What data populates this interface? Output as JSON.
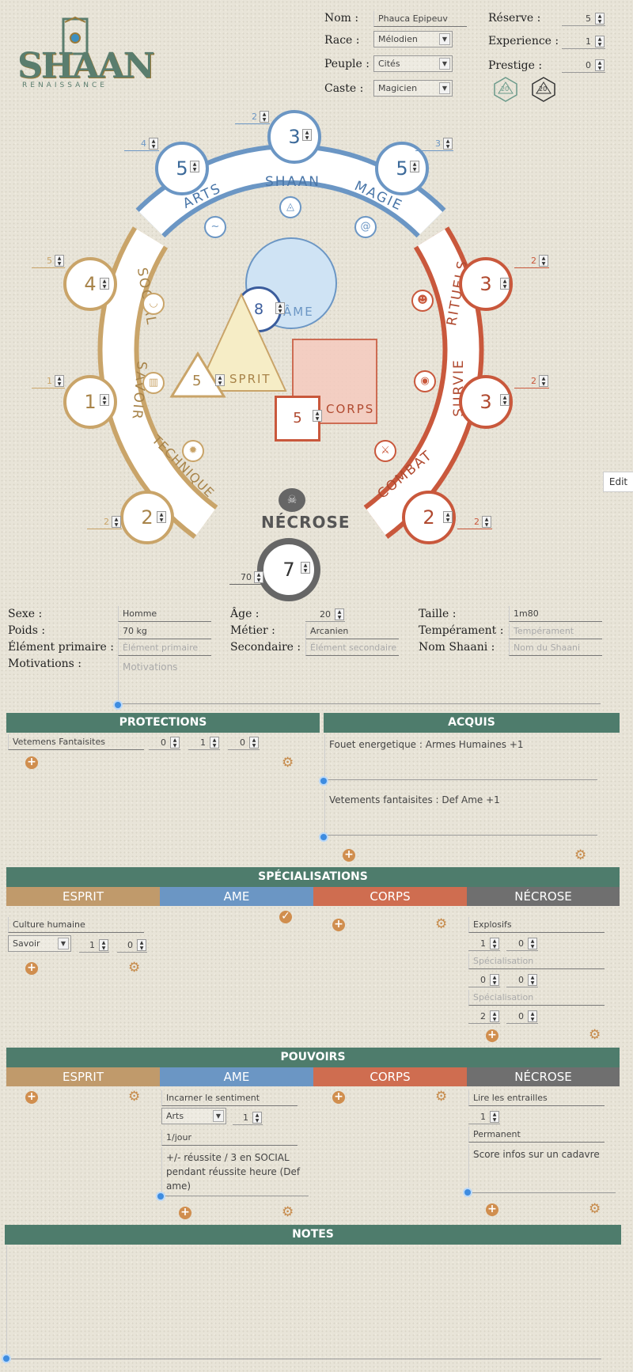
{
  "header": {
    "logo_title": "SHAAN",
    "logo_sub": "RENAISSANCE",
    "nom_label": "Nom :",
    "nom_value": "Phauca Epipeuv",
    "race_label": "Race :",
    "race_value": "Mélodien",
    "peuple_label": "Peuple :",
    "peuple_value": "Cités",
    "caste_label": "Caste :",
    "caste_value": "Magicien",
    "reserve_label": "Réserve :",
    "reserve_value": "5",
    "experience_label": "Experience :",
    "experience_value": "1",
    "prestige_label": "Prestige :",
    "prestige_value": "0",
    "d20_a": "20",
    "d20_b": "20"
  },
  "wheel": {
    "shaan_label": "SHAAN",
    "shaan_score": "3",
    "shaan_bonus": "2",
    "arts_label": "ARTS",
    "arts_score": "5",
    "arts_bonus": "4",
    "magie_label": "MAGIE",
    "magie_score": "5",
    "magie_bonus": "3",
    "social_label": "SOCIAL",
    "social_score": "4",
    "social_bonus": "5",
    "savoir_label": "SAVOIR",
    "savoir_score": "1",
    "savoir_bonus": "1",
    "technique_label": "TECHNIQUE",
    "technique_score": "2",
    "technique_bonus": "2",
    "rituels_label": "RITUELS",
    "rituels_score": "3",
    "rituels_bonus": "2",
    "survie_label": "SURVIE",
    "survie_score": "3",
    "survie_bonus": "2",
    "combat_label": "COMBAT",
    "combat_score": "2",
    "combat_bonus": "2",
    "ame_label": "ÂME",
    "ame_value": "8",
    "esprit_label": "SPRIT",
    "esprit_value": "5",
    "corps_label": "CORPS",
    "corps_value": "5",
    "necrose_label": "NÉCROSE",
    "necrose_value": "7",
    "necrose_bonus": "70",
    "colors": {
      "ame": "#6b96c4",
      "esprit": "#c9a469",
      "corps": "#c9583c",
      "necrose": "#666666"
    }
  },
  "edit_button": "Edit",
  "info": {
    "sexe_label": "Sexe :",
    "sexe_value": "Homme",
    "age_label": "Âge :",
    "age_value": "20",
    "taille_label": "Taille :",
    "taille_value": "1m80",
    "poids_label": "Poids :",
    "poids_value": "70 kg",
    "metier_label": "Métier :",
    "metier_value": "Arcanien",
    "temperament_label": "Tempérament :",
    "temperament_ph": "Tempérament",
    "element_label": "Élément primaire :",
    "element_ph": "Élément primaire",
    "secondaire_label": "Secondaire :",
    "secondaire_ph": "Élément secondaire",
    "nomshaani_label": "Nom Shaani :",
    "nomshaani_ph": "Nom du Shaani",
    "motivations_label": "Motivations :",
    "motivations_ph": "Motivations"
  },
  "protections": {
    "title": "PROTECTIONS",
    "item_name": "Vetemens Fantaisites",
    "v1": "0",
    "v2": "1",
    "v3": "0"
  },
  "acquis": {
    "title": "ACQUIS",
    "item1": "Fouet energetique : Armes Humaines +1",
    "item2": "Vetements fantaisites : Def Ame +1"
  },
  "specialisations": {
    "title": "SPÉCIALISATIONS",
    "tabs": [
      "ESPRIT",
      "AME",
      "CORPS",
      "NÉCROSE"
    ],
    "esprit_item": "Culture humaine",
    "esprit_domain": "Savoir",
    "esprit_v1": "1",
    "esprit_v2": "0",
    "necrose_item1": "Explosifs",
    "n1_v1": "1",
    "n1_v2": "0",
    "necrose_ph2": "Spécialisation",
    "n2_v1": "0",
    "n2_v2": "0",
    "necrose_ph3": "Spécialisation",
    "n3_v1": "2",
    "n3_v2": "0"
  },
  "pouvoirs": {
    "title": "POUVOIRS",
    "tabs": [
      "ESPRIT",
      "AME",
      "CORPS",
      "NÉCROSE"
    ],
    "ame_item": "Incarner le sentiment",
    "ame_domain": "Arts",
    "ame_v": "1",
    "ame_freq": "1/jour",
    "ame_desc": "+/- réussite / 3 en SOCIAL pendant réussite heure (Def ame)",
    "necrose_item": "Lire les entrailles",
    "necrose_v": "1",
    "necrose_freq": "Permanent",
    "necrose_desc": "Score infos sur un cadavre"
  },
  "notes": {
    "title": "NOTES"
  }
}
